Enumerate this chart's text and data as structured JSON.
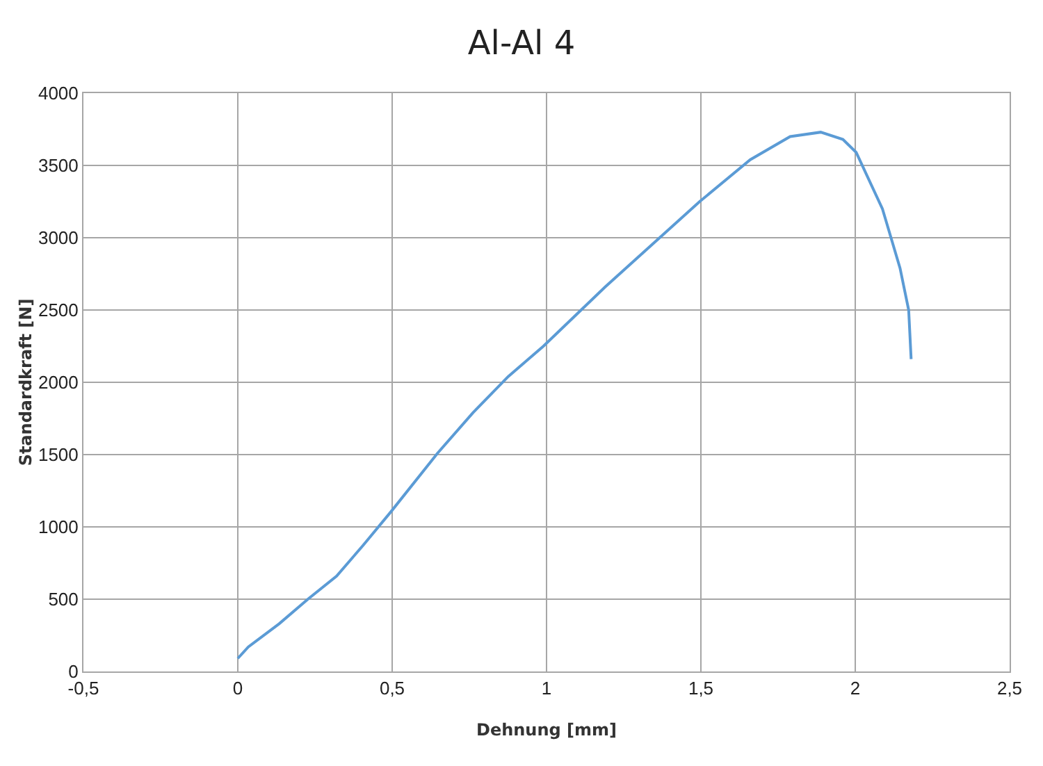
{
  "chart_data": {
    "type": "line",
    "title": "Al-Al 4",
    "xlabel": "Dehnung [mm]",
    "ylabel": "Standardkraft [N]",
    "x": [
      0,
      0.034,
      0.134,
      0.227,
      0.32,
      0.405,
      0.498,
      0.647,
      0.762,
      0.876,
      0.99,
      1.19,
      1.496,
      1.66,
      1.789,
      1.888,
      1.96,
      2.003,
      2.088,
      2.145,
      2.173,
      2.181
    ],
    "series": [
      {
        "color": "#5b9bd5",
        "values": [
          90,
          170,
          330,
          500,
          660,
          870,
          1110,
          1510,
          1790,
          2040,
          2250,
          2660,
          3250,
          3540,
          3700,
          3730,
          3680,
          3590,
          3200,
          2790,
          2500,
          2160
        ]
      }
    ],
    "xlim": [
      -0.5,
      2.5
    ],
    "xticks": [
      {
        "value": -0.5,
        "label": "-0,5"
      },
      0,
      {
        "value": 0.5,
        "label": "0,5"
      },
      1,
      {
        "value": 1.5,
        "label": "1,5"
      },
      2,
      {
        "value": 2.5,
        "label": "2,5"
      }
    ],
    "ylim": [
      0,
      4000
    ],
    "yticks": [
      0,
      500,
      1000,
      1500,
      2000,
      2500,
      3000,
      3500,
      4000
    ],
    "grid": true,
    "marker": "none",
    "line_style": "solid"
  }
}
